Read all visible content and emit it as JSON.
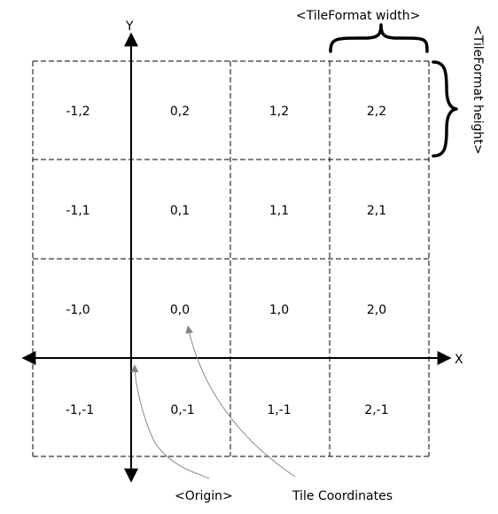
{
  "axes": {
    "x_label": "X",
    "y_label": "Y"
  },
  "tiles": {
    "rows": [
      [
        "-1,2",
        "0,2",
        "1,2",
        "2,2"
      ],
      [
        "-1,1",
        "0,1",
        "1,1",
        "2,1"
      ],
      [
        "-1,0",
        "0,0",
        "1,0",
        "2,0"
      ],
      [
        "-1,-1",
        "0,-1",
        "1,-1",
        "2,-1"
      ]
    ]
  },
  "annotations": {
    "tile_width": "<TileFormat width>",
    "tile_height": "<TileFormat height>",
    "origin": "<Origin>",
    "tile_coordinates": "Tile Coordinates"
  },
  "colors": {
    "line": "#000000",
    "pointer": "#888888",
    "background": "#ffffff"
  }
}
